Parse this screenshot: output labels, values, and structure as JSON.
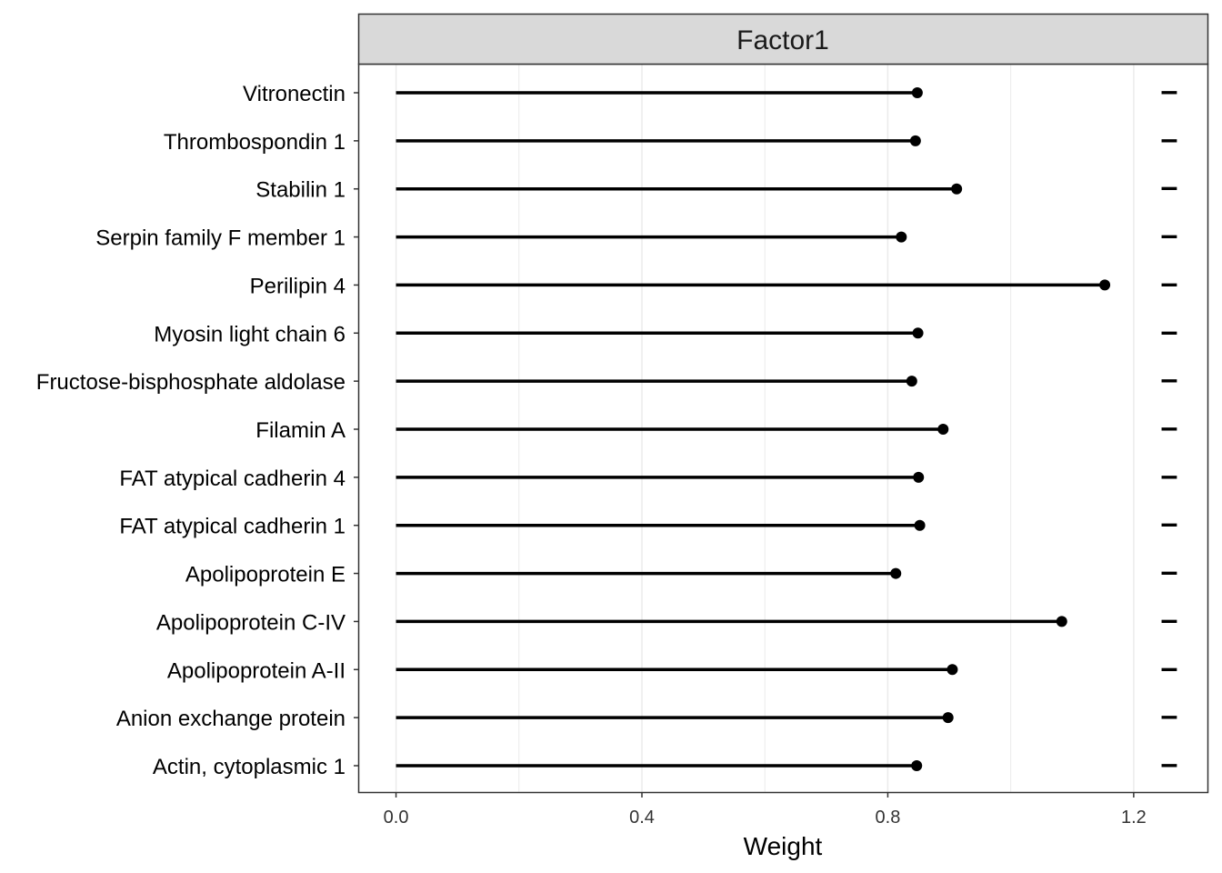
{
  "chart_data": {
    "type": "lollipop",
    "facet_label": "Factor1",
    "xlabel": "Weight",
    "ylabel": "",
    "xlim": [
      -0.06,
      1.32
    ],
    "x_ticks": [
      0.0,
      0.4,
      0.8,
      1.2
    ],
    "x_tick_labels": [
      "0.0",
      "0.4",
      "0.8",
      "1.2"
    ],
    "grid": true,
    "sign_marker": "–",
    "categories": [
      "Vitronectin",
      "Thrombospondin 1",
      "Stabilin 1",
      "Serpin family F member 1",
      "Perilipin 4",
      "Myosin light chain 6",
      "Fructose-bisphosphate aldolase",
      "Filamin A",
      "FAT atypical cadherin 4",
      "FAT atypical cadherin 1",
      "Apolipoprotein E",
      "Apolipoprotein C-IV",
      "Apolipoprotein A-II",
      "Anion exchange protein",
      "Actin, cytoplasmic 1"
    ],
    "values": [
      0.848,
      0.845,
      0.912,
      0.822,
      1.153,
      0.849,
      0.839,
      0.89,
      0.85,
      0.852,
      0.813,
      1.083,
      0.905,
      0.898,
      0.847
    ],
    "colors": {
      "line": "#000000",
      "strip_fill": "#d9d9d9",
      "grid": "#ebebeb",
      "border": "#333333"
    }
  }
}
